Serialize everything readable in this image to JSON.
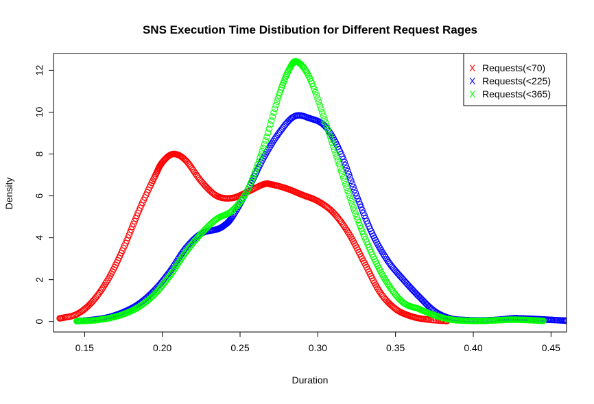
{
  "chart_data": {
    "type": "scatter",
    "title": "SNS Execution Time Distibution for Different Request Rages",
    "xlabel": "Duration",
    "ylabel": "Density",
    "xlim": [
      0.13,
      0.46
    ],
    "ylim": [
      -0.5,
      12.8
    ],
    "x_ticks": [
      0.15,
      0.2,
      0.25,
      0.3,
      0.35,
      0.4,
      0.45
    ],
    "x_tick_labels": [
      "0.15",
      "0.20",
      "0.25",
      "0.30",
      "0.35",
      "0.40",
      "0.45"
    ],
    "y_ticks": [
      0,
      2,
      4,
      6,
      8,
      10,
      12
    ],
    "y_tick_labels": [
      "0",
      "2",
      "4",
      "6",
      "8",
      "10",
      "12"
    ],
    "grid": false,
    "legend_position": "top-right",
    "legend_symbol": "X",
    "series": [
      {
        "name": "Requests(<70)",
        "color": "#ff0000",
        "x": [
          0.134,
          0.145,
          0.155,
          0.165,
          0.175,
          0.185,
          0.195,
          0.2,
          0.207,
          0.215,
          0.225,
          0.235,
          0.245,
          0.255,
          0.265,
          0.27,
          0.28,
          0.29,
          0.3,
          0.31,
          0.32,
          0.33,
          0.34,
          0.35,
          0.36,
          0.37,
          0.383
        ],
        "y": [
          0.15,
          0.35,
          0.95,
          2.0,
          3.5,
          5.3,
          6.9,
          7.6,
          8.0,
          7.7,
          6.7,
          6.0,
          5.9,
          6.2,
          6.55,
          6.55,
          6.35,
          6.05,
          5.75,
          5.2,
          4.2,
          2.8,
          1.4,
          0.6,
          0.25,
          0.1,
          0.02
        ]
      },
      {
        "name": "Requests(<225)",
        "color": "#0000ff",
        "x": [
          0.145,
          0.155,
          0.165,
          0.175,
          0.185,
          0.195,
          0.205,
          0.215,
          0.225,
          0.235,
          0.24,
          0.245,
          0.255,
          0.265,
          0.275,
          0.285,
          0.295,
          0.305,
          0.315,
          0.325,
          0.335,
          0.345,
          0.355,
          0.365,
          0.375,
          0.385,
          0.395,
          0.405,
          0.415,
          0.425,
          0.43,
          0.44,
          0.45,
          0.46
        ],
        "y": [
          0.02,
          0.08,
          0.2,
          0.45,
          0.85,
          1.5,
          2.4,
          3.5,
          4.2,
          4.4,
          4.6,
          5.0,
          6.3,
          7.8,
          9.0,
          9.8,
          9.7,
          9.3,
          8.0,
          6.0,
          4.2,
          2.9,
          2.0,
          1.2,
          0.5,
          0.15,
          0.07,
          0.05,
          0.08,
          0.15,
          0.15,
          0.12,
          0.08,
          0.04
        ]
      },
      {
        "name": "Requests(<365)",
        "color": "#00ff00",
        "x": [
          0.145,
          0.155,
          0.165,
          0.175,
          0.185,
          0.195,
          0.205,
          0.215,
          0.225,
          0.235,
          0.245,
          0.255,
          0.265,
          0.275,
          0.282,
          0.287,
          0.295,
          0.305,
          0.315,
          0.325,
          0.335,
          0.345,
          0.355,
          0.365,
          0.375,
          0.385,
          0.395,
          0.405,
          0.415,
          0.425,
          0.435,
          0.445
        ],
        "y": [
          0.02,
          0.05,
          0.15,
          0.35,
          0.7,
          1.3,
          2.2,
          3.3,
          4.2,
          4.9,
          5.3,
          6.3,
          8.3,
          10.8,
          12.1,
          12.4,
          11.6,
          9.5,
          7.2,
          5.0,
          3.2,
          1.8,
          0.9,
          0.6,
          0.3,
          0.1,
          0.04,
          0.03,
          0.06,
          0.09,
          0.07,
          0.03
        ]
      }
    ]
  }
}
